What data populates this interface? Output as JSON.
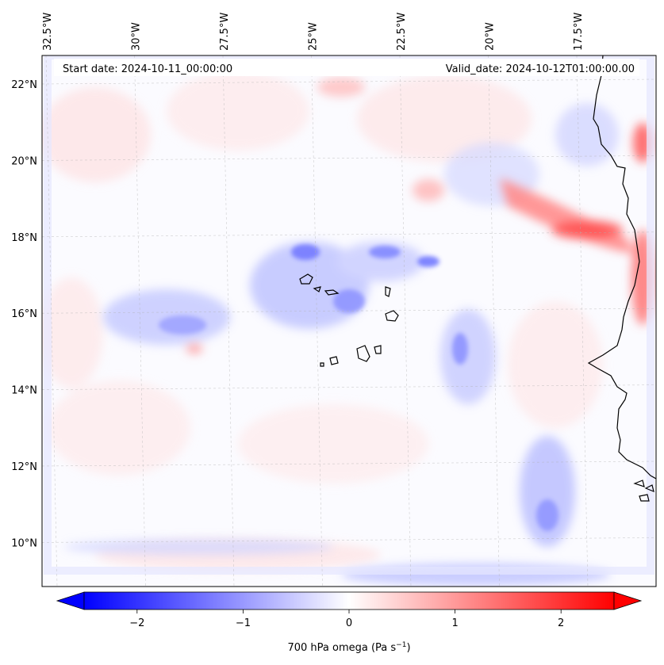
{
  "header": {
    "start_date": "Start date: 2024-10-11_00:00:00",
    "valid_date": "Valid_date: 2024-10-12T01:00:00.00"
  },
  "axes": {
    "lon_labels": [
      {
        "value": -32.5,
        "text": "32.5°W"
      },
      {
        "value": -30.0,
        "text": "30°W"
      },
      {
        "value": -27.5,
        "text": "27.5°W"
      },
      {
        "value": -25.0,
        "text": "25°W"
      },
      {
        "value": -22.5,
        "text": "22.5°W"
      },
      {
        "value": -20.0,
        "text": "20°W"
      },
      {
        "value": -17.5,
        "text": "17.5°W"
      }
    ],
    "lat_labels": [
      {
        "value": 22,
        "text": "22°N"
      },
      {
        "value": 20,
        "text": "20°N"
      },
      {
        "value": 18,
        "text": "18°N"
      },
      {
        "value": 16,
        "text": "16°N"
      },
      {
        "value": 14,
        "text": "14°N"
      },
      {
        "value": 12,
        "text": "12°N"
      },
      {
        "value": 10,
        "text": "10°N"
      }
    ],
    "grid": true
  },
  "colorbar": {
    "label": "700 hPa omega (Pa s",
    "label_sup": "−1",
    "label_end": ")",
    "ticks": [
      {
        "value": -2,
        "text": "−2"
      },
      {
        "value": -1,
        "text": "−1"
      },
      {
        "value": 0,
        "text": "0"
      },
      {
        "value": 1,
        "text": "1"
      },
      {
        "value": 2,
        "text": "2"
      }
    ],
    "range": [
      -2.5,
      2.5
    ],
    "colormap": "bwr",
    "extend": "both",
    "min_color": "#0000ff",
    "mid_color": "#ffffff",
    "max_color": "#ff0000"
  }
}
